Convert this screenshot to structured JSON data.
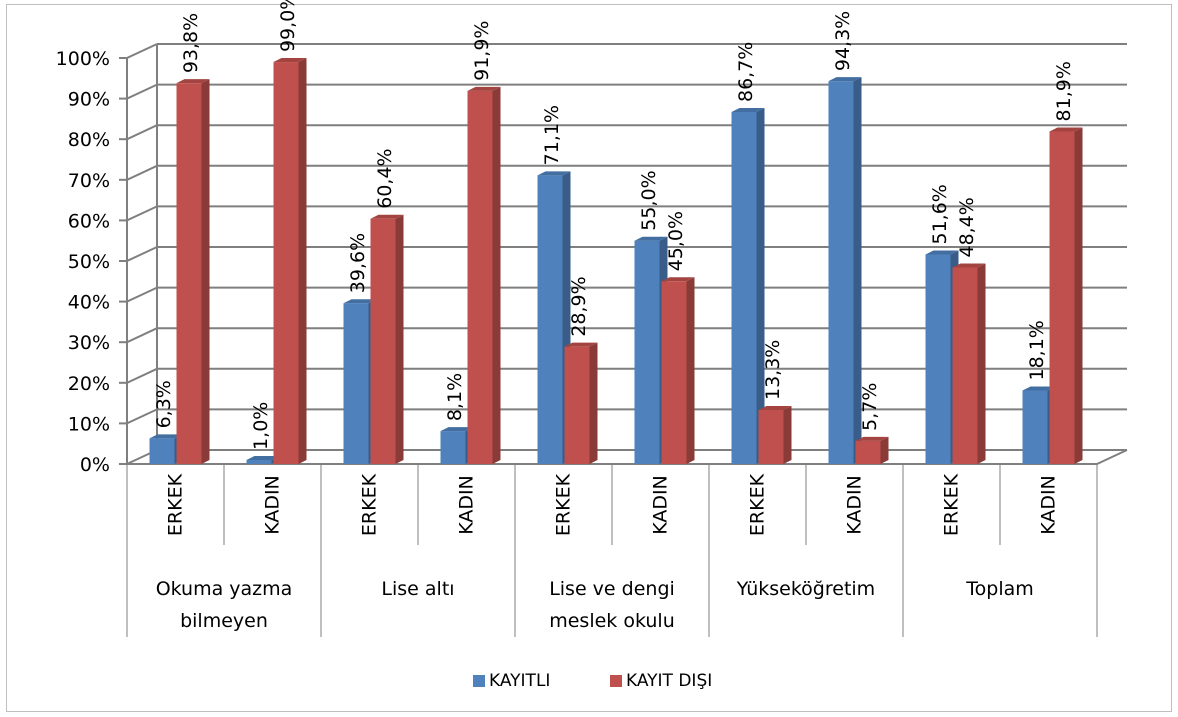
{
  "chart_data": {
    "type": "bar",
    "ylim": [
      0,
      100
    ],
    "y_ticks": [
      "0%",
      "10%",
      "20%",
      "30%",
      "40%",
      "50%",
      "60%",
      "70%",
      "80%",
      "90%",
      "100%"
    ],
    "groups": [
      {
        "label": "Okuma yazma\nbilmeyen",
        "items": [
          {
            "label": "ERKEK",
            "values": [
              6.3,
              93.8
            ],
            "data_labels": [
              "6,3%",
              "93,8%"
            ]
          },
          {
            "label": "KADIN",
            "values": [
              1.0,
              99.0
            ],
            "data_labels": [
              "1,0%",
              "99,0%"
            ]
          }
        ]
      },
      {
        "label": "Lise altı",
        "items": [
          {
            "label": "ERKEK",
            "values": [
              39.6,
              60.4
            ],
            "data_labels": [
              "39,6%",
              "60,4%"
            ]
          },
          {
            "label": "KADIN",
            "values": [
              8.1,
              91.9
            ],
            "data_labels": [
              "8,1%",
              "91,9%"
            ]
          }
        ]
      },
      {
        "label": "Lise ve dengi\nmeslek okulu",
        "items": [
          {
            "label": "ERKEK",
            "values": [
              71.1,
              28.9
            ],
            "data_labels": [
              "71,1%",
              "28,9%"
            ]
          },
          {
            "label": "KADIN",
            "values": [
              55.0,
              45.0
            ],
            "data_labels": [
              "55,0%",
              "45,0%"
            ]
          }
        ]
      },
      {
        "label": "Yükseköğretim",
        "items": [
          {
            "label": "ERKEK",
            "values": [
              86.7,
              13.3
            ],
            "data_labels": [
              "86,7%",
              "13,3%"
            ]
          },
          {
            "label": "KADIN",
            "values": [
              94.3,
              5.7
            ],
            "data_labels": [
              "94,3%",
              "5,7%"
            ]
          }
        ]
      },
      {
        "label": "Toplam",
        "items": [
          {
            "label": "ERKEK",
            "values": [
              51.6,
              48.4
            ],
            "data_labels": [
              "51,6%",
              "48,4%"
            ]
          },
          {
            "label": "KADIN",
            "values": [
              18.1,
              81.9
            ],
            "data_labels": [
              "18,1%",
              "81,9%"
            ]
          }
        ]
      }
    ],
    "series": [
      {
        "name": "KAYITLI",
        "color": "#4f81bd"
      },
      {
        "name": "KAYIT DIŞI",
        "color": "#c0504d"
      }
    ],
    "legend_position": "bottom",
    "grid": true
  }
}
